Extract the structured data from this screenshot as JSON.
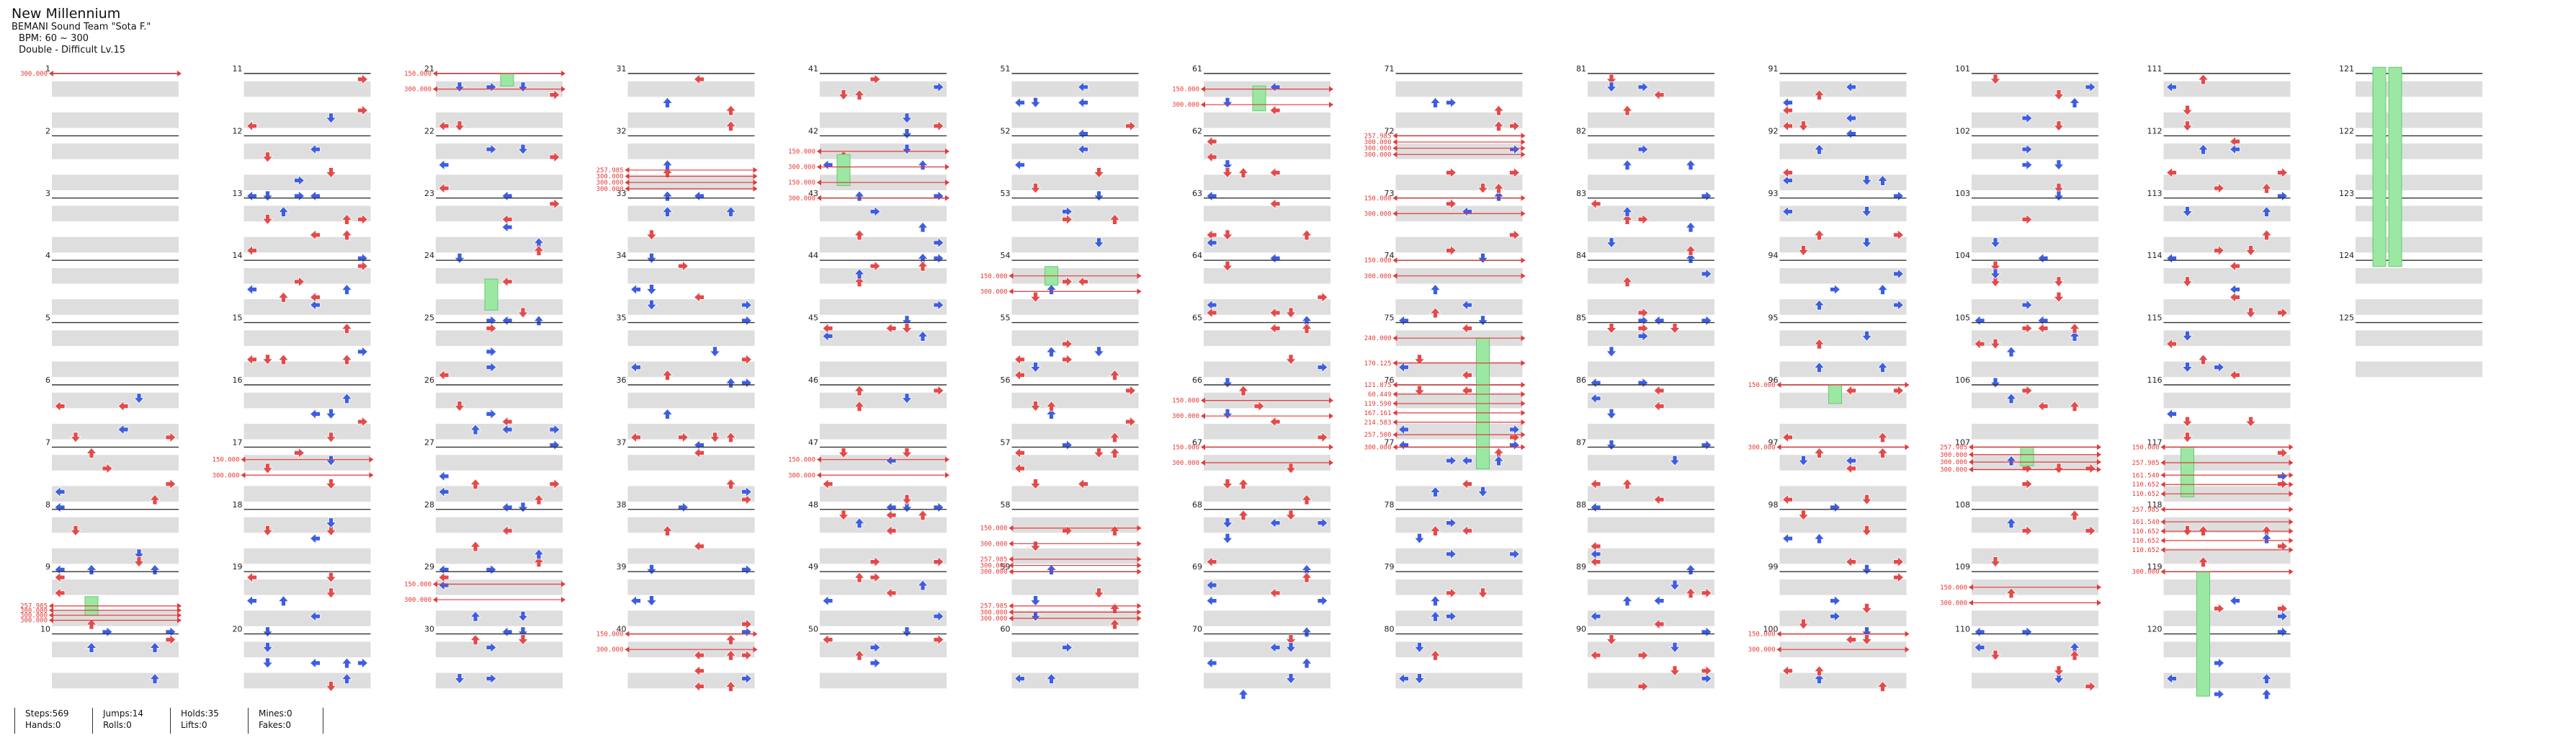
{
  "song": {
    "title": "New Millennium",
    "artist": "BEMANI Sound Team \"Sota F.\"",
    "bpm": "BPM: 60 ~ 300",
    "difficulty": "Double - Difficult Lv.15"
  },
  "stats": [
    {
      "a": "Steps:569",
      "b": "Hands:0"
    },
    {
      "a": "Jumps:14",
      "b": "Rolls:0"
    },
    {
      "a": "Holds:35",
      "b": "Lifts:0"
    },
    {
      "a": "Mines:0",
      "b": "Fakes:0"
    }
  ],
  "columns": [
    {
      "measures": [
        "1",
        "2",
        "3",
        "4",
        "5",
        "6",
        "7",
        "8",
        "9",
        "10"
      ]
    },
    {
      "measures": [
        "11",
        "12",
        "13",
        "14",
        "15",
        "16",
        "17",
        "18",
        "19",
        "20"
      ]
    },
    {
      "measures": [
        "21",
        "22",
        "23",
        "24",
        "25",
        "26",
        "27",
        "28",
        "29",
        "30"
      ]
    },
    {
      "measures": [
        "31",
        "32",
        "33",
        "34",
        "35",
        "36",
        "37",
        "38",
        "39",
        "40"
      ]
    },
    {
      "measures": [
        "41",
        "42",
        "43",
        "44",
        "45",
        "46",
        "47",
        "48",
        "49",
        "50"
      ]
    },
    {
      "measures": [
        "51",
        "52",
        "53",
        "54",
        "55",
        "56",
        "57",
        "58",
        "59",
        "60"
      ]
    },
    {
      "measures": [
        "61",
        "62",
        "63",
        "64",
        "65",
        "66",
        "67",
        "68",
        "69",
        "70"
      ]
    },
    {
      "measures": [
        "71",
        "72",
        "73",
        "74",
        "75",
        "76",
        "77",
        "78",
        "79",
        "80"
      ]
    },
    {
      "measures": [
        "81",
        "82",
        "83",
        "84",
        "85",
        "86",
        "87",
        "88",
        "89",
        "90"
      ]
    },
    {
      "measures": [
        "91",
        "92",
        "93",
        "94",
        "95",
        "96",
        "97",
        "98",
        "99",
        "100"
      ]
    },
    {
      "measures": [
        "101",
        "102",
        "103",
        "104",
        "105",
        "106",
        "107",
        "108",
        "109",
        "110"
      ]
    },
    {
      "measures": [
        "111",
        "112",
        "113",
        "114",
        "115",
        "116",
        "117",
        "118",
        "119",
        "120"
      ]
    },
    {
      "measures": [
        "121",
        "122",
        "123",
        "124",
        "125"
      ]
    }
  ],
  "bpm_changes": [
    {
      "col": 0,
      "m": 0,
      "f": 0.0,
      "label": "300.000"
    },
    {
      "col": 0,
      "m": 8,
      "f": 0.55,
      "label": "257.985"
    },
    {
      "col": 0,
      "m": 8,
      "f": 0.62,
      "label": "300.000"
    },
    {
      "col": 0,
      "m": 8,
      "f": 0.7,
      "label": "300.000"
    },
    {
      "col": 0,
      "m": 8,
      "f": 0.78,
      "label": "300.000"
    },
    {
      "col": 1,
      "m": 6,
      "f": 0.2,
      "label": "150.000"
    },
    {
      "col": 1,
      "m": 6,
      "f": 0.45,
      "label": "300.000"
    },
    {
      "col": 2,
      "m": 0,
      "f": 0.0,
      "label": "150.000"
    },
    {
      "col": 2,
      "m": 0,
      "f": 0.25,
      "label": "300.000"
    },
    {
      "col": 2,
      "m": 8,
      "f": 0.2,
      "label": "150.000"
    },
    {
      "col": 2,
      "m": 8,
      "f": 0.45,
      "label": "300.000"
    },
    {
      "col": 3,
      "m": 1,
      "f": 0.55,
      "label": "257.985"
    },
    {
      "col": 3,
      "m": 1,
      "f": 0.65,
      "label": "300.000"
    },
    {
      "col": 3,
      "m": 1,
      "f": 0.75,
      "label": "300.000"
    },
    {
      "col": 3,
      "m": 1,
      "f": 0.85,
      "label": "300.000"
    },
    {
      "col": 3,
      "m": 9,
      "f": 0.0,
      "label": "150.000"
    },
    {
      "col": 3,
      "m": 9,
      "f": 0.25,
      "label": "300.000"
    },
    {
      "col": 4,
      "m": 1,
      "f": 0.25,
      "label": "150.000"
    },
    {
      "col": 4,
      "m": 1,
      "f": 0.5,
      "label": "300.000"
    },
    {
      "col": 4,
      "m": 1,
      "f": 0.75,
      "label": "150.000"
    },
    {
      "col": 4,
      "m": 2,
      "f": 0.0,
      "label": "300.000"
    },
    {
      "col": 4,
      "m": 6,
      "f": 0.2,
      "label": "150.000"
    },
    {
      "col": 4,
      "m": 6,
      "f": 0.45,
      "label": "300.000"
    },
    {
      "col": 5,
      "m": 3,
      "f": 0.25,
      "label": "150.000"
    },
    {
      "col": 5,
      "m": 3,
      "f": 0.5,
      "label": "300.000"
    },
    {
      "col": 5,
      "m": 7,
      "f": 0.3,
      "label": "150.000"
    },
    {
      "col": 5,
      "m": 7,
      "f": 0.55,
      "label": "300.000"
    },
    {
      "col": 5,
      "m": 7,
      "f": 0.8,
      "label": "257.985"
    },
    {
      "col": 5,
      "m": 7,
      "f": 0.9,
      "label": "300.000"
    },
    {
      "col": 5,
      "m": 8,
      "f": 0.0,
      "label": "300.000"
    },
    {
      "col": 5,
      "m": 8,
      "f": 0.55,
      "label": "257.985"
    },
    {
      "col": 5,
      "m": 8,
      "f": 0.65,
      "label": "300.000"
    },
    {
      "col": 5,
      "m": 8,
      "f": 0.75,
      "label": "300.000"
    },
    {
      "col": 6,
      "m": 0,
      "f": 0.25,
      "label": "150.000"
    },
    {
      "col": 6,
      "m": 0,
      "f": 0.5,
      "label": "300.000"
    },
    {
      "col": 6,
      "m": 5,
      "f": 0.25,
      "label": "150.000"
    },
    {
      "col": 6,
      "m": 5,
      "f": 0.5,
      "label": "300.000"
    },
    {
      "col": 6,
      "m": 6,
      "f": 0.0,
      "label": "150.000"
    },
    {
      "col": 6,
      "m": 6,
      "f": 0.25,
      "label": "300.000"
    },
    {
      "col": 7,
      "m": 1,
      "f": 0.0,
      "label": "257.985"
    },
    {
      "col": 7,
      "m": 1,
      "f": 0.1,
      "label": "300.000"
    },
    {
      "col": 7,
      "m": 1,
      "f": 0.2,
      "label": "300.000"
    },
    {
      "col": 7,
      "m": 1,
      "f": 0.3,
      "label": "300.000"
    },
    {
      "col": 7,
      "m": 2,
      "f": 0.0,
      "label": "150.000"
    },
    {
      "col": 7,
      "m": 2,
      "f": 0.25,
      "label": "300.000"
    },
    {
      "col": 7,
      "m": 3,
      "f": 0.0,
      "label": "150.000"
    },
    {
      "col": 7,
      "m": 3,
      "f": 0.25,
      "label": "300.000"
    },
    {
      "col": 7,
      "m": 4,
      "f": 0.25,
      "label": "240.000"
    },
    {
      "col": 7,
      "m": 4,
      "f": 0.65,
      "label": "170.125"
    },
    {
      "col": 7,
      "m": 5,
      "f": 0.0,
      "label": "121.875"
    },
    {
      "col": 7,
      "m": 5,
      "f": 0.15,
      "label": "60.449"
    },
    {
      "col": 7,
      "m": 5,
      "f": 0.3,
      "label": "119.590"
    },
    {
      "col": 7,
      "m": 5,
      "f": 0.45,
      "label": "167.161"
    },
    {
      "col": 7,
      "m": 5,
      "f": 0.6,
      "label": "214.583"
    },
    {
      "col": 7,
      "m": 5,
      "f": 0.8,
      "label": "257.500"
    },
    {
      "col": 7,
      "m": 5,
      "f": 1.0,
      "label": "300.000"
    },
    {
      "col": 9,
      "m": 5,
      "f": 0.0,
      "label": "150.000"
    },
    {
      "col": 9,
      "m": 6,
      "f": 0.0,
      "label": "300.000"
    },
    {
      "col": 9,
      "m": 9,
      "f": 0.0,
      "label": "150.000"
    },
    {
      "col": 9,
      "m": 9,
      "f": 0.25,
      "label": "300.000"
    },
    {
      "col": 10,
      "m": 6,
      "f": 0.0,
      "label": "257.985"
    },
    {
      "col": 10,
      "m": 6,
      "f": 0.12,
      "label": "300.000"
    },
    {
      "col": 10,
      "m": 6,
      "f": 0.24,
      "label": "300.000"
    },
    {
      "col": 10,
      "m": 6,
      "f": 0.36,
      "label": "300.000"
    },
    {
      "col": 10,
      "m": 8,
      "f": 0.25,
      "label": "150.000"
    },
    {
      "col": 10,
      "m": 8,
      "f": 0.5,
      "label": "300.000"
    },
    {
      "col": 11,
      "m": 6,
      "f": 0.0,
      "label": "150.000"
    },
    {
      "col": 11,
      "m": 6,
      "f": 0.25,
      "label": "257.985"
    },
    {
      "col": 11,
      "m": 6,
      "f": 0.45,
      "label": "161.540"
    },
    {
      "col": 11,
      "m": 6,
      "f": 0.6,
      "label": "110.652"
    },
    {
      "col": 11,
      "m": 6,
      "f": 0.75,
      "label": "110.652"
    },
    {
      "col": 11,
      "m": 7,
      "f": 0.0,
      "label": "257.985"
    },
    {
      "col": 11,
      "m": 7,
      "f": 0.2,
      "label": "161.540"
    },
    {
      "col": 11,
      "m": 7,
      "f": 0.35,
      "label": "110.652"
    },
    {
      "col": 11,
      "m": 7,
      "f": 0.5,
      "label": "110.652"
    },
    {
      "col": 11,
      "m": 7,
      "f": 0.65,
      "label": "110.652"
    },
    {
      "col": 11,
      "m": 8,
      "f": 0.0,
      "label": "300.000"
    }
  ],
  "colors": {
    "quarter_arrow": "#e34a4a",
    "eighth_arrow": "#3d5ee0",
    "sixteenth_arrow": "#ffd84a",
    "twelfth_arrow": "#b05ae8",
    "hold_body": "#9be8a2",
    "bpm_line": "#e33a3a",
    "band": "#dedede",
    "measure_line": "#333333"
  }
}
